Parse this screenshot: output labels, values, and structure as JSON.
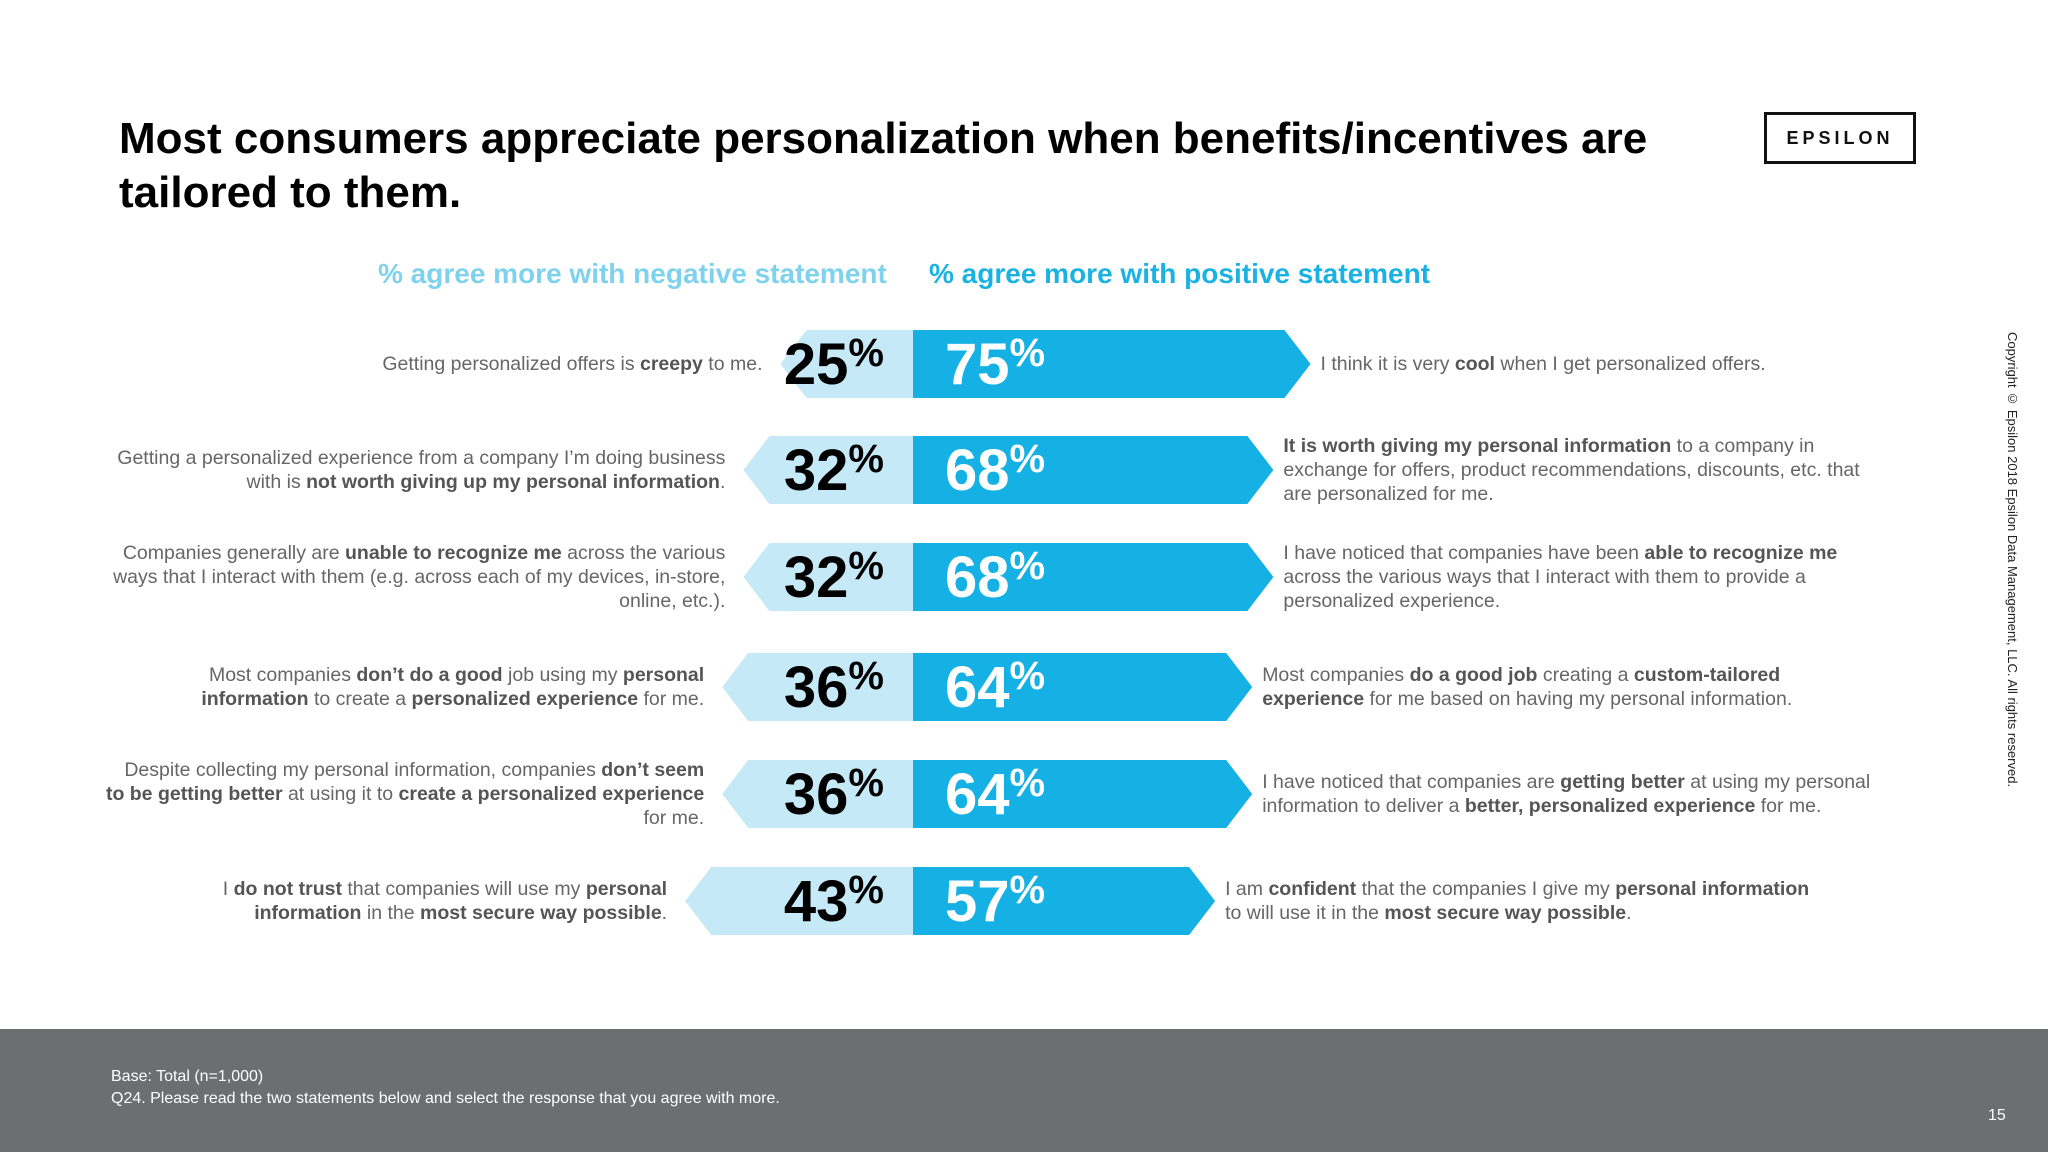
{
  "title": "Most consumers appreciate personalization when benefits/incentives are tailored to them.",
  "logo_text": "EPSILON",
  "colors": {
    "negative": "#c5e9f6",
    "positive": "#15b0e4",
    "neg_header": "#7fd2ee",
    "pos_header": "#1ab2e3",
    "footer": "#6d6e70"
  },
  "chart_data": {
    "type": "bar",
    "orientation": "horizontal-diverging",
    "legend": [
      "% agree more with negative statement",
      "% agree more with positive statement"
    ],
    "categories": [
      "Getting personalized offers is creepy to me. / I think it is very cool when I get personalized offers.",
      "Getting a personalized experience from a company I’m doing business with is not worth giving up my personal information. / It is worth giving my personal information to a company in exchange for offers, product recommendations, discounts, etc. that are personalized for me.",
      "Companies generally are unable to recognize me across the various ways that I interact with them (e.g. across each of my devices, in-store, online, etc.). / I have noticed that companies have been able to recognize me across the various ways that I interact with them to provide a personalized experience.",
      "Most companies don’t do a good job using my personal information to create a personalized experience for me. / Most companies do a good job creating a custom-tailored experience for me based on having my personal information.",
      "Despite collecting my personal information, companies don’t seem to be getting better at using it to create a personalized experience for me. / I have noticed that companies are getting better at using my personal information to deliver a better, personalized experience for me.",
      "I do not trust that companies will use my personal information in the most secure way possible. / I am confident that the companies I give my personal information to will use it in the most secure way possible."
    ],
    "series": [
      {
        "name": "% agree more with negative statement",
        "values": [
          25,
          32,
          32,
          36,
          36,
          43
        ]
      },
      {
        "name": "% agree more with positive statement",
        "values": [
          75,
          68,
          68,
          64,
          64,
          57
        ]
      }
    ],
    "unit": "%",
    "value_labels_negative": [
      "25",
      "32",
      "32",
      "36",
      "36",
      "43"
    ],
    "value_labels_positive": [
      "75",
      "68",
      "68",
      "64",
      "64",
      "57"
    ],
    "percent_sign": "%"
  },
  "rows": [
    {
      "left": [
        [
          "Getting personalized offers is ",
          ""
        ],
        [
          "creepy",
          "b"
        ],
        [
          " to me.",
          ""
        ]
      ],
      "right": [
        [
          "I think it is very ",
          ""
        ],
        [
          "cool",
          "b"
        ],
        [
          " when I get personalized offers.",
          ""
        ]
      ]
    },
    {
      "left": [
        [
          "Getting a personalized experience from a company I’m doing business with is ",
          ""
        ],
        [
          "not worth giving up my personal information",
          "b"
        ],
        [
          ".",
          ""
        ]
      ],
      "right": [
        [
          "It is worth giving my personal information",
          "b"
        ],
        [
          " to a company in exchange for offers, product recommendations, discounts, etc. that are personalized for me.",
          ""
        ]
      ]
    },
    {
      "left": [
        [
          "Companies generally are ",
          ""
        ],
        [
          "unable to recognize me",
          "b"
        ],
        [
          " across  the various ways that I interact with them (e.g. across each of my devices, in-store, online, etc.).",
          ""
        ]
      ],
      "right": [
        [
          "I have noticed that companies have been ",
          ""
        ],
        [
          "able to recognize me",
          "b"
        ],
        [
          " across the various ways that I interact with them to provide a personalized experience.",
          ""
        ]
      ]
    },
    {
      "left": [
        [
          "Most companies ",
          ""
        ],
        [
          "don’t do a good",
          "b"
        ],
        [
          " job using my ",
          ""
        ],
        [
          "personal information",
          "b"
        ],
        [
          " to create a ",
          ""
        ],
        [
          "personalized experience",
          "b"
        ],
        [
          " for me.",
          ""
        ]
      ],
      "right": [
        [
          "Most companies ",
          ""
        ],
        [
          "do a good job",
          "b"
        ],
        [
          " creating a ",
          ""
        ],
        [
          "custom-tailored experience",
          "b"
        ],
        [
          " for me based on having my personal information.",
          ""
        ]
      ]
    },
    {
      "left": [
        [
          "Despite collecting my personal information, companies ",
          ""
        ],
        [
          "don’t seem to be getting better",
          "b"
        ],
        [
          " at using it to ",
          ""
        ],
        [
          "create a personalized experience",
          "b"
        ],
        [
          " for me.",
          ""
        ]
      ],
      "right": [
        [
          "I have noticed that companies are ",
          ""
        ],
        [
          "getting better",
          "b"
        ],
        [
          " at using my personal information to deliver a ",
          ""
        ],
        [
          "better, personalized experience",
          "b"
        ],
        [
          " for me.",
          ""
        ]
      ]
    },
    {
      "left": [
        [
          "I ",
          ""
        ],
        [
          "do not trust",
          "b"
        ],
        [
          " that companies will use my ",
          ""
        ],
        [
          "personal information",
          "b"
        ],
        [
          " in the ",
          ""
        ],
        [
          "most secure way possible",
          "b"
        ],
        [
          ".",
          ""
        ]
      ],
      "right": [
        [
          "I am ",
          ""
        ],
        [
          "confident",
          "b"
        ],
        [
          " that the companies I give my ",
          ""
        ],
        [
          "personal information",
          "b"
        ],
        [
          " to will use it in the ",
          ""
        ],
        [
          "most secure way possible",
          "b"
        ],
        [
          ".",
          ""
        ]
      ]
    }
  ],
  "copyright": "Copyright © Epsilon 2018 Epsilon Data Management, LLC. All rights reserved.",
  "footer": {
    "base": "Base: Total (n=1,000)",
    "question": "Q24. Please read the two statements below and select the response that you agree with more.",
    "page": "15"
  }
}
